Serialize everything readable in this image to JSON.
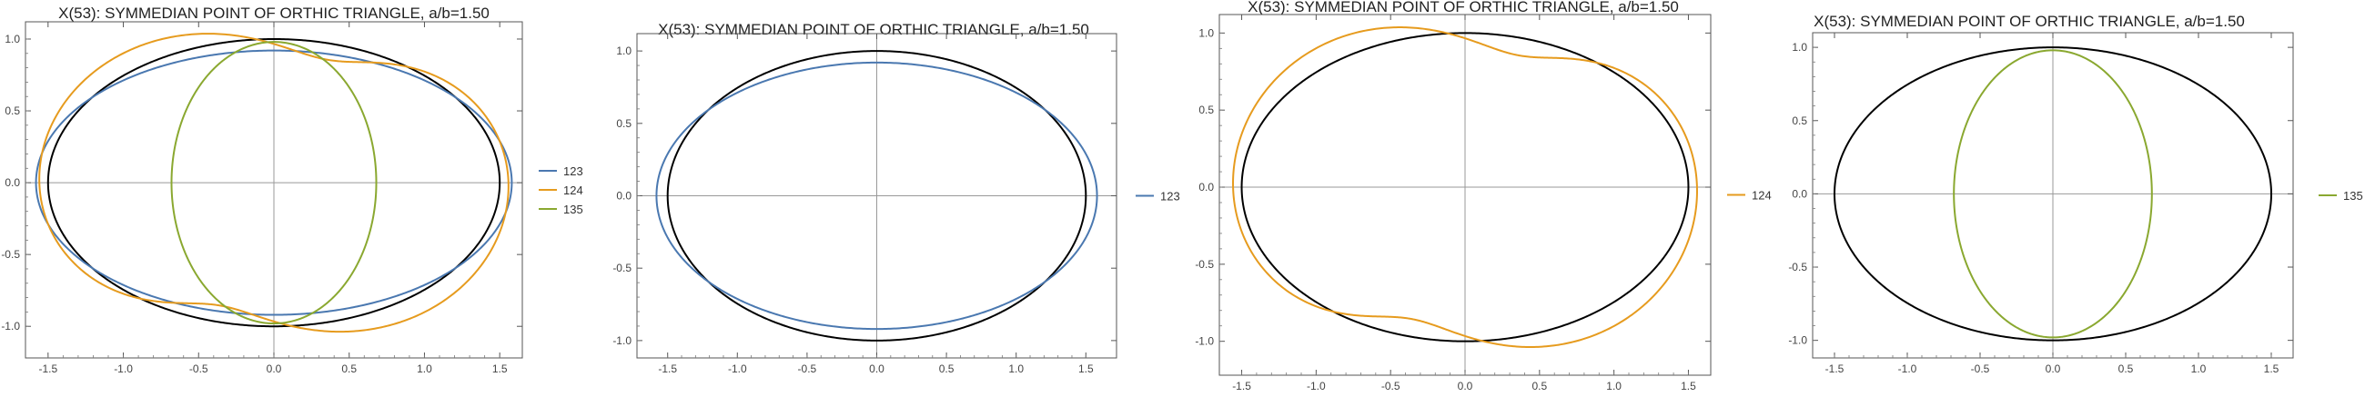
{
  "chart_data": [
    {
      "type": "line",
      "title": "X(53): SYMMEDIAN POINT OF ORTHIC TRIANGLE, a/b=1.50",
      "xlabel": "",
      "ylabel": "",
      "xlim": [
        -1.65,
        1.65
      ],
      "ylim": [
        -1.22,
        1.12
      ],
      "x_ticks": [
        "-1.5",
        "-1.0",
        "-0.5",
        "0.0",
        "0.5",
        "1.0",
        "1.5"
      ],
      "y_ticks": [
        "-1.0",
        "-0.5",
        "0.0",
        "0.5",
        "1.0"
      ],
      "x_tick_values": [
        -1.5,
        -1.0,
        -0.5,
        0.0,
        0.5,
        1.0,
        1.5
      ],
      "y_tick_values": [
        -1.0,
        -0.5,
        0.0,
        0.5,
        1.0
      ],
      "grid": false,
      "legend_position": "right",
      "series": [
        {
          "name": "",
          "kind": "ellipse",
          "color": "#000000",
          "rx": 1.5,
          "ry": 1.0
        },
        {
          "name": "123",
          "kind": "ellipse",
          "color": "#4a78b0",
          "rx": 1.58,
          "ry": 0.92
        },
        {
          "name": "124",
          "kind": "looped",
          "color": "#e69b1e",
          "rx": 1.38,
          "ry": 1.08,
          "tilt": 0.5,
          "loop": 0.2,
          "loop_freq": 3,
          "phase": 0.0
        },
        {
          "name": "135",
          "kind": "ellipse",
          "color": "#8aa830",
          "rx": 0.68,
          "ry": 0.98
        }
      ]
    },
    {
      "type": "line",
      "title": "X(53): SYMMEDIAN POINT OF ORTHIC TRIANGLE, a/b=1.50",
      "xlabel": "",
      "ylabel": "",
      "xlim": [
        -1.72,
        1.72
      ],
      "ylim": [
        -1.12,
        1.12
      ],
      "x_ticks": [
        "-1.5",
        "-1.0",
        "-0.5",
        "0.0",
        "0.5",
        "1.0",
        "1.5"
      ],
      "y_ticks": [
        "-1.0",
        "-0.5",
        "0.0",
        "0.5",
        "1.0"
      ],
      "x_tick_values": [
        -1.5,
        -1.0,
        -0.5,
        0.0,
        0.5,
        1.0,
        1.5
      ],
      "y_tick_values": [
        -1.0,
        -0.5,
        0.0,
        0.5,
        1.0
      ],
      "grid": false,
      "legend_position": "right",
      "series": [
        {
          "name": "",
          "kind": "ellipse",
          "color": "#000000",
          "rx": 1.5,
          "ry": 1.0
        },
        {
          "name": "123",
          "kind": "ellipse",
          "color": "#4a78b0",
          "rx": 1.58,
          "ry": 0.92
        }
      ]
    },
    {
      "type": "line",
      "title": "X(53): SYMMEDIAN POINT OF ORTHIC TRIANGLE, a/b=1.50",
      "xlabel": "",
      "ylabel": "",
      "xlim": [
        -1.65,
        1.65
      ],
      "ylim": [
        -1.22,
        1.12
      ],
      "x_ticks": [
        "-1.5",
        "-1.0",
        "-0.5",
        "0.0",
        "0.5",
        "1.0",
        "1.5"
      ],
      "y_ticks": [
        "-1.0",
        "-0.5",
        "0.0",
        "0.5",
        "1.0"
      ],
      "x_tick_values": [
        -1.5,
        -1.0,
        -0.5,
        0.0,
        0.5,
        1.0,
        1.5
      ],
      "y_tick_values": [
        -1.0,
        -0.5,
        0.0,
        0.5,
        1.0
      ],
      "grid": false,
      "legend_position": "right",
      "series": [
        {
          "name": "",
          "kind": "ellipse",
          "color": "#000000",
          "rx": 1.5,
          "ry": 1.0
        },
        {
          "name": "124",
          "kind": "looped",
          "color": "#e69b1e",
          "rx": 1.38,
          "ry": 1.08,
          "tilt": 0.5,
          "loop": 0.2,
          "loop_freq": 3,
          "phase": 0.0
        }
      ]
    },
    {
      "type": "line",
      "title": "X(53): SYMMEDIAN POINT OF ORTHIC TRIANGLE, a/b=1.50",
      "xlabel": "",
      "ylabel": "",
      "xlim": [
        -1.65,
        1.65
      ],
      "ylim": [
        -1.12,
        1.1
      ],
      "x_ticks": [
        "-1.5",
        "-1.0",
        "-0.5",
        "0.0",
        "0.5",
        "1.0",
        "1.5"
      ],
      "y_ticks": [
        "-1.0",
        "-0.5",
        "0.0",
        "0.5",
        "1.0"
      ],
      "x_tick_values": [
        -1.5,
        -1.0,
        -0.5,
        0.0,
        0.5,
        1.0,
        1.5
      ],
      "y_tick_values": [
        -1.0,
        -0.5,
        0.0,
        0.5,
        1.0
      ],
      "grid": false,
      "legend_position": "right",
      "series": [
        {
          "name": "",
          "kind": "ellipse",
          "color": "#000000",
          "rx": 1.5,
          "ry": 1.0
        },
        {
          "name": "135",
          "kind": "ellipse",
          "color": "#8aa830",
          "rx": 0.68,
          "ry": 0.98
        }
      ]
    }
  ]
}
